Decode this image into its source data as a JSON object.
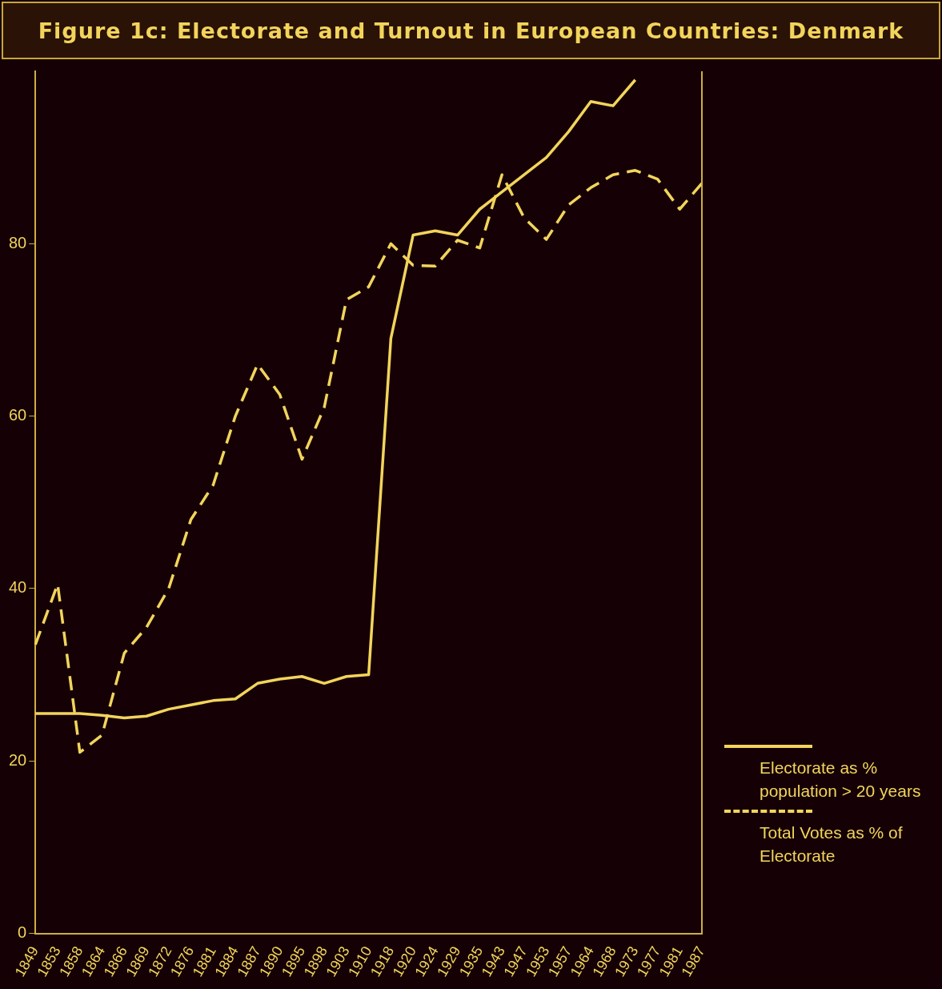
{
  "chart_data": {
    "type": "line",
    "title": "Figure 1c: Electorate and Turnout in European Countries: Denmark",
    "categories": [
      "1849",
      "1853",
      "1858",
      "1864",
      "1866",
      "1869",
      "1872",
      "1876",
      "1881",
      "1884",
      "1887",
      "1890",
      "1895",
      "1898",
      "1903",
      "1910",
      "1918",
      "1920",
      "1924",
      "1929",
      "1935",
      "1943",
      "1947",
      "1953",
      "1957",
      "1964",
      "1968",
      "1973",
      "1977",
      "1981",
      "1987"
    ],
    "series": [
      {
        "name": "Electorate as % population > 20 years",
        "color": "#f2d45c",
        "line_style": "solid",
        "values": [
          25.5,
          25.5,
          25.5,
          25.3,
          25,
          25.2,
          26,
          26.5,
          27,
          27.2,
          29,
          29.5,
          29.8,
          29,
          29.8,
          30,
          69,
          81,
          81.5,
          81,
          84,
          86,
          88,
          90,
          93,
          96.5,
          96,
          99,
          null,
          null,
          null
        ]
      },
      {
        "name": "Total Votes as % of Electorate",
        "color": "#f2d45c",
        "line_style": "dashed",
        "values": [
          33.5,
          40.5,
          21,
          23,
          32.5,
          35.5,
          40,
          48,
          52,
          60,
          66,
          62.5,
          55,
          61,
          73.5,
          75,
          80,
          77.5,
          77.4,
          80.4,
          79.5,
          88,
          83,
          80.5,
          84.5,
          86.5,
          88,
          88.5,
          87.5,
          84,
          87
        ]
      }
    ],
    "ylim": [
      0,
      100
    ],
    "yticks": [
      0,
      20,
      40,
      60,
      80
    ],
    "grid": false,
    "legend": "right",
    "marker": "none"
  }
}
